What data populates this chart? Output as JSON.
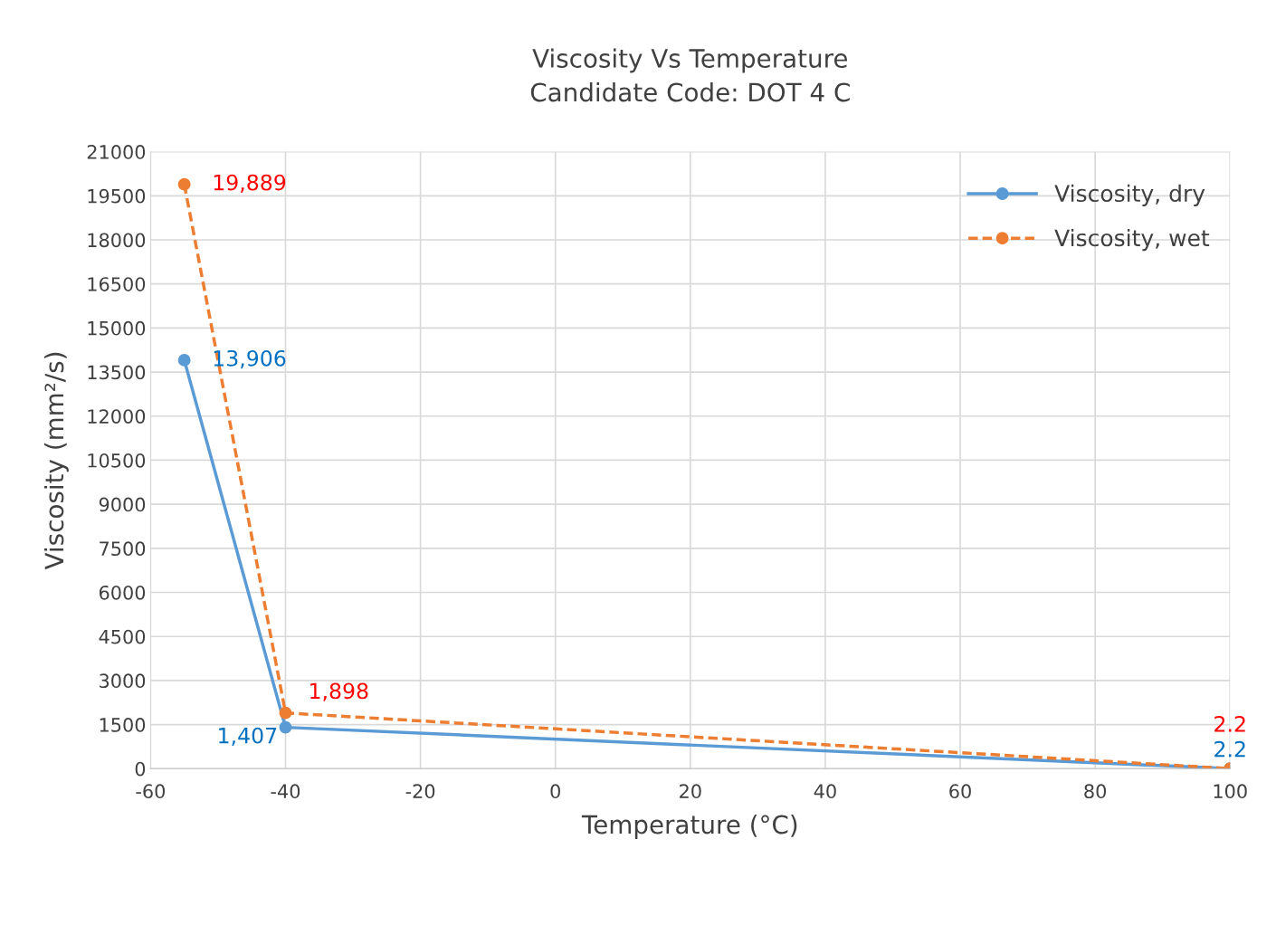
{
  "chart_data": {
    "type": "line",
    "title": "Viscosity Vs Temperature\nCandidate Code: DOT 4 C",
    "xlabel": "Temperature (°C)",
    "ylabel": "Viscosity (mm²/s)",
    "x": [
      -55,
      -40,
      100
    ],
    "series": [
      {
        "name": "Viscosity, dry",
        "color": "#5b9bd5",
        "values": [
          13906,
          1407,
          2.2
        ],
        "value_labels": [
          "13,906",
          "1,407",
          "2.2"
        ],
        "line_style": "solid"
      },
      {
        "name": "Viscosity, wet",
        "color": "#ed7d31",
        "values": [
          19889,
          1898,
          2.2
        ],
        "value_labels": [
          "19,889",
          "1,898",
          "2.2"
        ],
        "line_style": "dashed"
      }
    ],
    "xlim": [
      -60,
      100
    ],
    "xticks": [
      -60,
      -40,
      -20,
      0,
      20,
      40,
      60,
      80,
      100
    ],
    "ylim": [
      0,
      21000
    ],
    "yticks": [
      0,
      1500,
      3000,
      4500,
      6000,
      7500,
      9000,
      10500,
      12000,
      13500,
      15000,
      16500,
      18000,
      19500,
      21000
    ],
    "grid": true,
    "legend": "top right",
    "marker": "circle"
  }
}
